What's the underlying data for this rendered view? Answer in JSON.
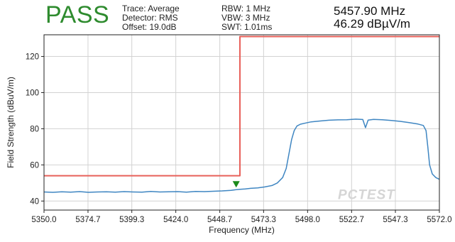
{
  "header": {
    "status": "PASS",
    "status_color": "#2e8b2e",
    "trace": "Trace: Average",
    "detector": "Detector: RMS",
    "offset": "Offset: 19.0dB",
    "rbw": "RBW: 1 MHz",
    "vbw": "VBW: 3 MHz",
    "swt": "SWT: 1.01ms",
    "marker_frequency": "5457.90 MHz",
    "marker_level": "46.29 dBµV/m"
  },
  "watermark": "PCTEST",
  "chart_data": {
    "type": "line",
    "xlabel": "Frequency (MHz)",
    "ylabel": "Field Strength (dBuV/m)",
    "xlim": [
      5350.0,
      5572.0
    ],
    "ylim": [
      35,
      132
    ],
    "x_ticks": [
      5350.0,
      5374.7,
      5399.3,
      5424.0,
      5448.7,
      5473.3,
      5498.0,
      5522.7,
      5547.3,
      5572.0
    ],
    "x_tick_labels": [
      "5350.0",
      "5374.7",
      "5399.3",
      "5424.0",
      "5448.7",
      "5473.3",
      "5498.0",
      "5522.7",
      "5547.3",
      "5572.0"
    ],
    "y_ticks": [
      40,
      60,
      80,
      100,
      120
    ],
    "y_tick_labels": [
      "40",
      "60",
      "80",
      "100",
      "120"
    ],
    "grid": true,
    "series": [
      {
        "role": "limit",
        "color": "#e8605a",
        "x": [
          5350.0,
          5460.0,
          5460.0,
          5572.0
        ],
        "y": [
          54.0,
          54.0,
          131.0,
          131.0
        ]
      },
      {
        "role": "trace",
        "color": "#3f86c2",
        "x": [
          5350,
          5355,
          5360,
          5365,
          5370,
          5375,
          5380,
          5385,
          5390,
          5395,
          5400,
          5405,
          5410,
          5415,
          5420,
          5425,
          5430,
          5435,
          5440,
          5445,
          5450,
          5455,
          5457.9,
          5460,
          5463,
          5466,
          5470,
          5474,
          5478,
          5481,
          5484,
          5486,
          5487.5,
          5489,
          5490.5,
          5492,
          5494,
          5497,
          5500,
          5505,
          5510,
          5515,
          5520,
          5525,
          5529,
          5530.5,
          5532,
          5535,
          5540,
          5545,
          5550,
          5555,
          5560,
          5563,
          5564.5,
          5565.5,
          5566.5,
          5568,
          5570,
          5572
        ],
        "y": [
          45.0,
          44.8,
          45.1,
          44.9,
          45.2,
          44.8,
          45.0,
          45.1,
          44.9,
          45.2,
          45.0,
          44.9,
          45.3,
          45.0,
          45.1,
          45.2,
          44.9,
          45.3,
          45.2,
          45.4,
          45.6,
          45.9,
          46.29,
          46.5,
          46.7,
          47.0,
          47.3,
          47.8,
          48.6,
          50.0,
          53.0,
          58.0,
          66.0,
          74.0,
          79.0,
          81.5,
          82.5,
          83.2,
          83.8,
          84.3,
          84.7,
          84.9,
          85.0,
          85.3,
          85.1,
          80.6,
          84.8,
          85.2,
          85.0,
          84.6,
          84.1,
          83.4,
          82.6,
          81.8,
          79.0,
          70.0,
          60.0,
          55.0,
          53.0,
          52.0
        ]
      }
    ],
    "marker": {
      "x": 5457.9,
      "y": 46.29,
      "color": "#1a8a1a"
    }
  }
}
